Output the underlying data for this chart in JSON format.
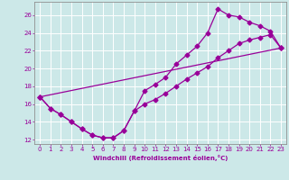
{
  "xlabel": "Windchill (Refroidissement éolien,°C)",
  "xlim": [
    -0.5,
    23.5
  ],
  "ylim": [
    11.5,
    27.5
  ],
  "xticks": [
    0,
    1,
    2,
    3,
    4,
    5,
    6,
    7,
    8,
    9,
    10,
    11,
    12,
    13,
    14,
    15,
    16,
    17,
    18,
    19,
    20,
    21,
    22,
    23
  ],
  "yticks": [
    12,
    14,
    16,
    18,
    20,
    22,
    24,
    26
  ],
  "bg_color": "#cce8e8",
  "line_color": "#990099",
  "line1_x": [
    0,
    1,
    2,
    3,
    4,
    5,
    6,
    7,
    8,
    9,
    10,
    11,
    12,
    13,
    14,
    15,
    16,
    17,
    18,
    19,
    20,
    21,
    22,
    23
  ],
  "line1_y": [
    16.8,
    15.5,
    14.8,
    14.0,
    13.2,
    12.5,
    12.2,
    12.2,
    13.0,
    15.2,
    17.5,
    18.2,
    19.0,
    20.5,
    21.5,
    22.5,
    24.0,
    26.7,
    26.0,
    25.8,
    25.2,
    24.8,
    24.2,
    22.3
  ],
  "line2_x": [
    0,
    1,
    2,
    3,
    4,
    5,
    6,
    7,
    8,
    9,
    10,
    11,
    12,
    13,
    14,
    15,
    16,
    17,
    18,
    19,
    20,
    21,
    22,
    23
  ],
  "line2_y": [
    16.8,
    15.5,
    14.8,
    14.0,
    13.2,
    12.5,
    12.2,
    12.2,
    13.0,
    15.2,
    16.0,
    16.5,
    17.2,
    18.0,
    18.8,
    19.5,
    20.2,
    21.2,
    22.0,
    22.8,
    23.2,
    23.5,
    23.8,
    22.3
  ],
  "line3_x": [
    0,
    23
  ],
  "line3_y": [
    16.8,
    22.3
  ]
}
